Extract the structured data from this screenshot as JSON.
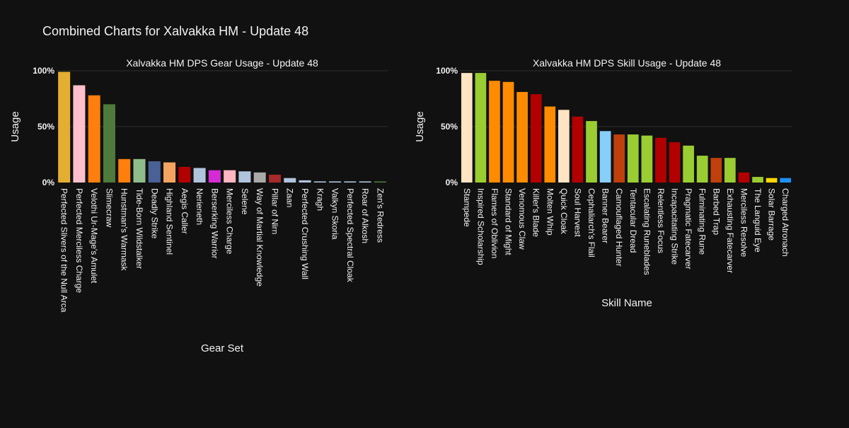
{
  "figure": {
    "title": "Combined Charts for Xalvakka HM - Update 48"
  },
  "colors": {
    "background": "#111111",
    "text": "#f2f2f2",
    "grid": "#2e2e2e"
  },
  "chart_data": [
    {
      "type": "bar",
      "title": "Xalvakka HM DPS Gear Usage - Update 48",
      "xlabel": "Gear Set",
      "ylabel": "Usage",
      "ylim": [
        0,
        100
      ],
      "yticks": [
        "0%",
        "50%",
        "100%"
      ],
      "grid": true,
      "categories": [
        "Perfected Slivers of the Null Arca",
        "Perfected Merciless Charge",
        "Velothi Ur-Mage's Amulet",
        "Slimecraw",
        "Hunstman's Warmask",
        "Tide-Born Wildstalker",
        "Deadly Strike",
        "Highland Sentinel",
        "Aegis Caller",
        "Nerieneth",
        "Berserking Warrior",
        "Merciless Charge",
        "Selene",
        "Way of Martial Knowledge",
        "Pillar of Nirn",
        "Zaan",
        "Perfected Crushing Wall",
        "Kragh",
        "Valkyn Skoria",
        "Perfected Spectral Cloak",
        "Roar of Alkosh",
        "Zen's Redress"
      ],
      "values": [
        99,
        87,
        78,
        70,
        21,
        21,
        19,
        18,
        14,
        13,
        11,
        11,
        10,
        9,
        7,
        4,
        2,
        1,
        1,
        1,
        1,
        1
      ],
      "colors": [
        "#E4AE32",
        "#FFC0CB",
        "#FF7F0E",
        "#4E7A3C",
        "#FF7F0E",
        "#8FBC8B",
        "#4A6196",
        "#F4A460",
        "#B20000",
        "#B0C4DE",
        "#D52BD5",
        "#FFB6C1",
        "#B0C4DE",
        "#A9A9A9",
        "#A52A2A",
        "#B0C4DE",
        "#B0C4DE",
        "#B0C4DE",
        "#B0C4DE",
        "#B0C4DE",
        "#B0C4DE",
        "#4E7A3C"
      ]
    },
    {
      "type": "bar",
      "title": "Xalvakka HM DPS Skill Usage - Update 48",
      "xlabel": "Skill Name",
      "ylabel": "Usage",
      "ylim": [
        0,
        100
      ],
      "yticks": [
        "0%",
        "50%",
        "100%"
      ],
      "grid": true,
      "categories": [
        "Stampede",
        "Inspired Scholarship",
        "Flames of Oblivion",
        "Standard of Might",
        "Venomous Claw",
        "Killer's Blade",
        "Molten Whip",
        "Quick Cloak",
        "Soul Harvest",
        "Cephaliarch's Flail",
        "Banner Bearer",
        "Camouflaged Hunter",
        "Tentacular Dread",
        "Escalating Runeblades",
        "Relentless Focus",
        "Incapacitating Strike",
        "Pragmatic Fatecarver",
        "Fulminating Rune",
        "Barbed Trap",
        "Exhausting Fatecarver",
        "Merciless Resolve",
        "The Languid Eye",
        "Solar Barrage",
        "Charged Atronach"
      ],
      "values": [
        98,
        98,
        91,
        90,
        81,
        79,
        68,
        65,
        59,
        55,
        46,
        43,
        43,
        42,
        40,
        36,
        33,
        24,
        22,
        22,
        9,
        5,
        4,
        4
      ],
      "colors": [
        "#FFE4C4",
        "#9ACD32",
        "#FF8C00",
        "#FF8C00",
        "#FF8C00",
        "#B20000",
        "#FF8C00",
        "#FFE4C4",
        "#B20000",
        "#9ACD32",
        "#87CEFA",
        "#C0400B",
        "#9ACD32",
        "#9ACD32",
        "#B20000",
        "#B20000",
        "#9ACD32",
        "#9ACD32",
        "#C0400B",
        "#9ACD32",
        "#B20000",
        "#9ACD32",
        "#FFD700",
        "#1E90FF"
      ]
    }
  ]
}
